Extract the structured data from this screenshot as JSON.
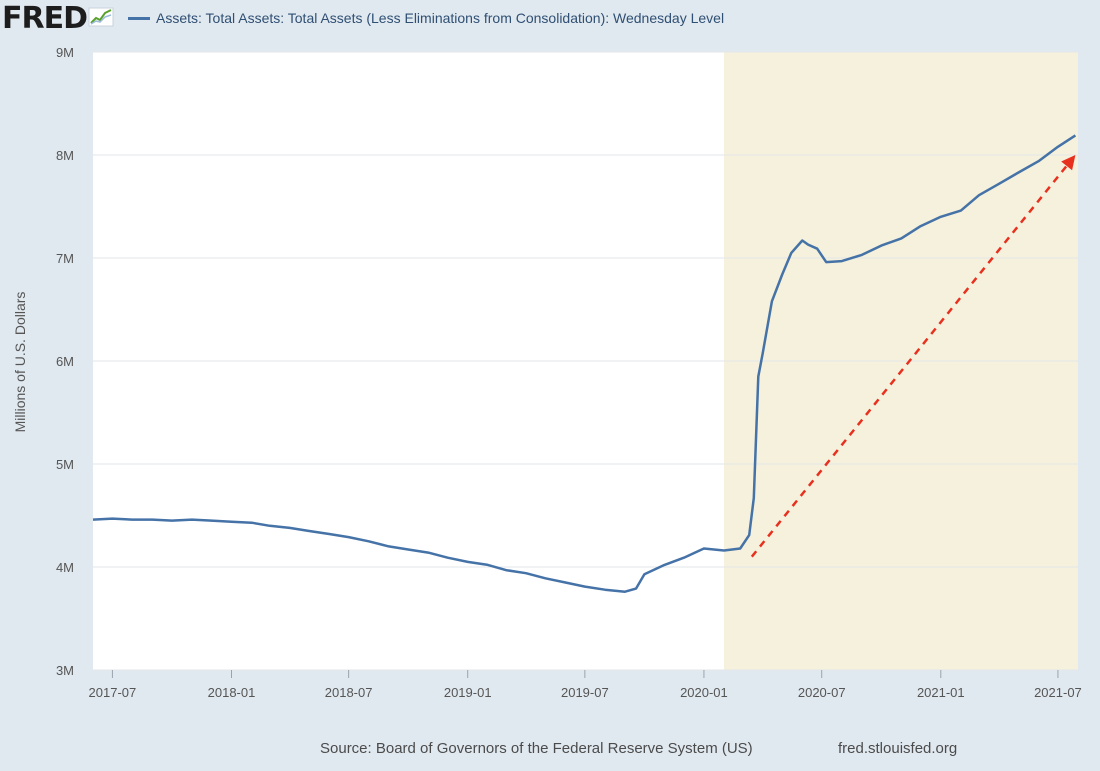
{
  "brand": {
    "logo_text": "FRED",
    "logo_icon": "chart-line-icon"
  },
  "colors": {
    "line": "#4572a7",
    "recession": "#f5f1dc",
    "arrow": "#e8301f",
    "plot_bg": "#ffffff",
    "page_bg": "#e1e9f0"
  },
  "chart_data": {
    "type": "line",
    "series": [
      {
        "name": "Assets: Total Assets: Total Assets (Less Eliminations from Consolidation): Wednesday Level",
        "x": [
          "2017-06-01",
          "2017-07-01",
          "2017-08-01",
          "2017-09-01",
          "2017-10-01",
          "2017-11-01",
          "2017-12-01",
          "2018-01-01",
          "2018-02-01",
          "2018-03-01",
          "2018-04-01",
          "2018-05-01",
          "2018-06-01",
          "2018-07-01",
          "2018-08-01",
          "2018-09-01",
          "2018-10-01",
          "2018-11-01",
          "2018-12-01",
          "2019-01-01",
          "2019-02-01",
          "2019-03-01",
          "2019-04-01",
          "2019-05-01",
          "2019-06-01",
          "2019-07-01",
          "2019-08-01",
          "2019-09-01",
          "2019-09-18",
          "2019-10-01",
          "2019-11-01",
          "2019-12-01",
          "2020-01-01",
          "2020-02-01",
          "2020-02-26",
          "2020-03-11",
          "2020-03-18",
          "2020-03-25",
          "2020-04-01",
          "2020-04-15",
          "2020-05-01",
          "2020-05-15",
          "2020-06-01",
          "2020-06-10",
          "2020-06-24",
          "2020-07-08",
          "2020-08-01",
          "2020-09-01",
          "2020-10-01",
          "2020-11-01",
          "2020-12-01",
          "2021-01-01",
          "2021-02-01",
          "2021-03-01",
          "2021-04-01",
          "2021-05-01",
          "2021-06-01",
          "2021-07-01",
          "2021-07-28"
        ],
        "values": [
          4.46,
          4.47,
          4.46,
          4.46,
          4.45,
          4.46,
          4.45,
          4.44,
          4.43,
          4.4,
          4.38,
          4.35,
          4.32,
          4.29,
          4.25,
          4.2,
          4.17,
          4.14,
          4.09,
          4.05,
          4.02,
          3.97,
          3.94,
          3.89,
          3.85,
          3.81,
          3.78,
          3.76,
          3.79,
          3.93,
          4.02,
          4.09,
          4.18,
          4.16,
          4.18,
          4.31,
          4.67,
          5.85,
          6.08,
          6.58,
          6.84,
          7.05,
          7.17,
          7.13,
          7.09,
          6.96,
          6.97,
          7.03,
          7.12,
          7.19,
          7.31,
          7.4,
          7.46,
          7.61,
          7.72,
          7.83,
          7.94,
          8.08,
          8.19
        ]
      }
    ],
    "x_tick_labels": [
      "2017-07",
      "2018-01",
      "2018-07",
      "2019-01",
      "2019-07",
      "2020-01",
      "2020-07",
      "2021-01",
      "2021-07"
    ],
    "x_tick_dates": [
      "2017-07-01",
      "2018-01-01",
      "2018-07-01",
      "2019-01-01",
      "2019-07-01",
      "2020-01-01",
      "2020-07-01",
      "2021-01-01",
      "2021-07-01"
    ],
    "xlim": [
      "2017-06-01",
      "2021-08-01"
    ],
    "y_ticks": [
      3,
      4,
      5,
      6,
      7,
      8,
      9
    ],
    "y_tick_labels": [
      "3M",
      "4M",
      "5M",
      "6M",
      "7M",
      "8M",
      "9M"
    ],
    "ylim": [
      3,
      9
    ],
    "ylabel": "Millions of U.S. Dollars",
    "xlabel": "",
    "recession_shading": {
      "start": "2020-02-01",
      "end": "2021-08-01"
    },
    "arrow": {
      "from": {
        "x": "2020-03-15",
        "y": 4.1
      },
      "to": {
        "x": "2021-07-28",
        "y": 8.0
      }
    },
    "grid": true
  },
  "footer": {
    "source": "Source: Board of Governors of the Federal Reserve System (US)",
    "site": "fred.stlouisfed.org"
  }
}
